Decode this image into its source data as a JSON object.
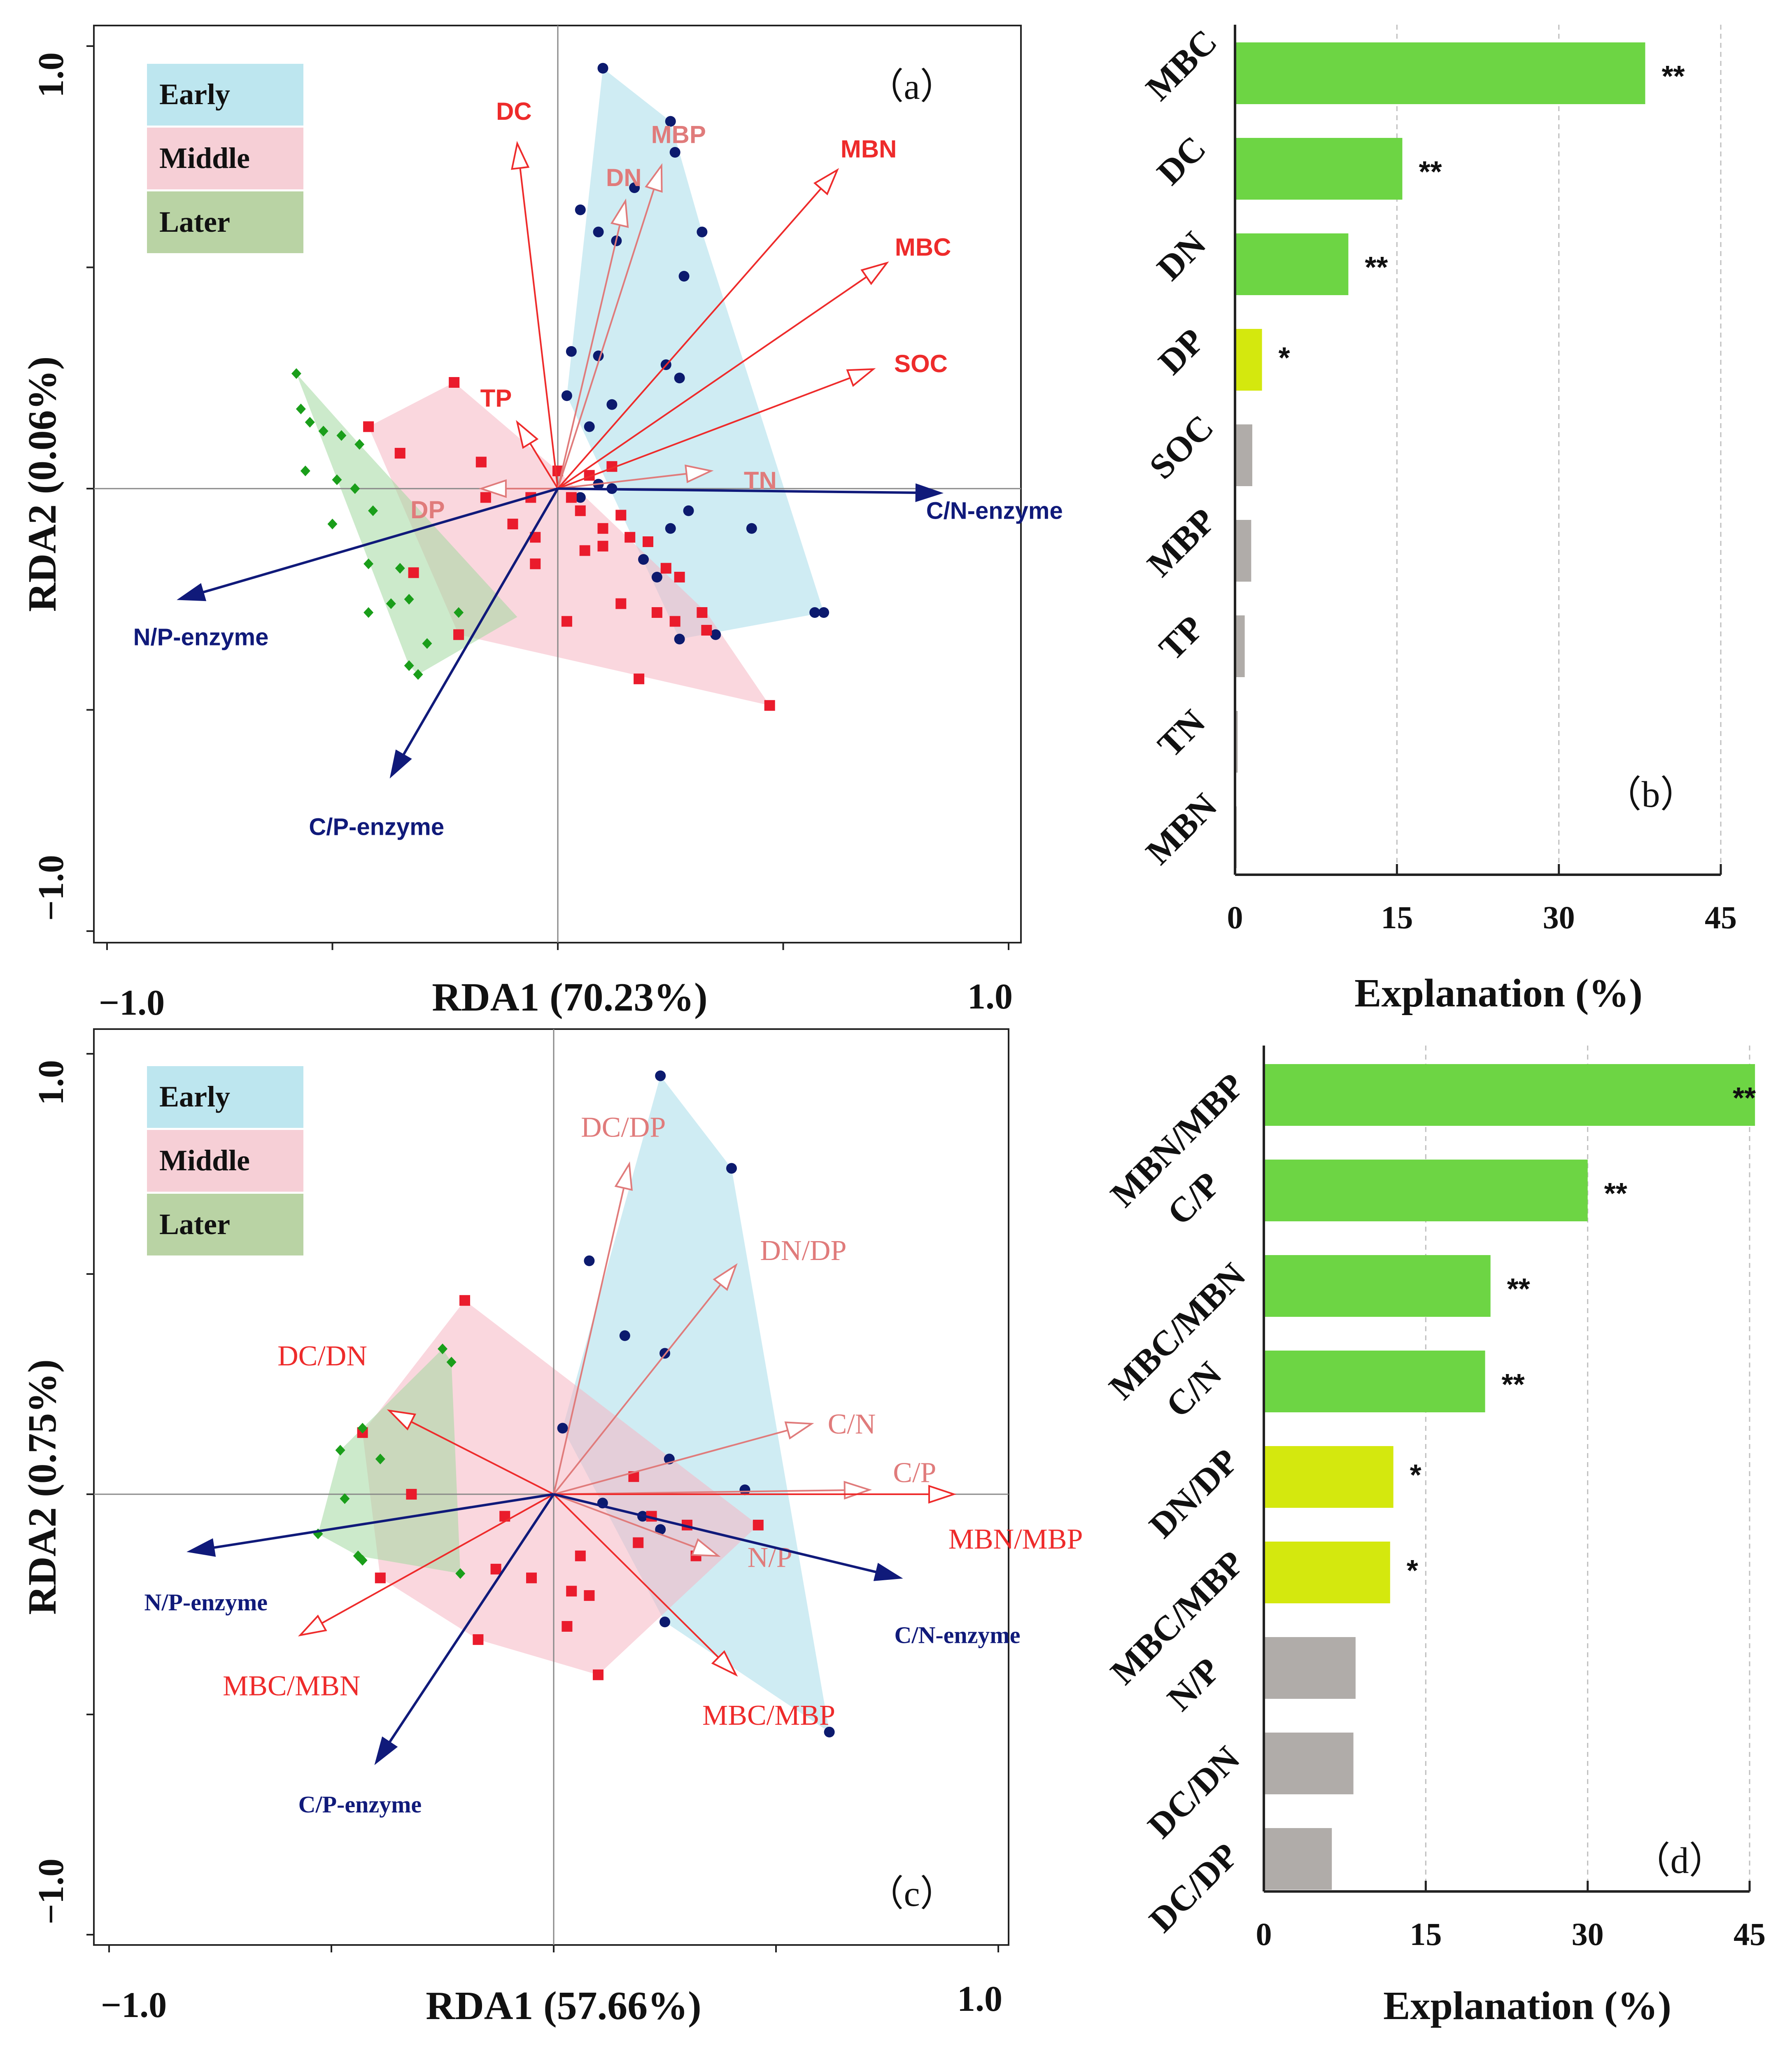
{
  "chart_data": [
    {
      "id": "a",
      "type": "scatter",
      "panel_label": "（a）",
      "xlabel": "RDA1 (70.23%)",
      "ylabel": "RDA2 (0.06%)",
      "xlim": [
        -1.0,
        1.0
      ],
      "ylim": [
        -1.0,
        1.0
      ],
      "xtick_labels": [
        "−1.0",
        "1.0"
      ],
      "ytick_labels": [
        "1.0",
        "−1.0"
      ],
      "legend": [
        {
          "label": "Early",
          "color": "#bde6ef"
        },
        {
          "label": "Middle",
          "color": "#f6cfd6"
        },
        {
          "label": "Later",
          "color": "#b9d3a4"
        }
      ],
      "groups": [
        {
          "name": "Early",
          "marker": "circle",
          "color": "#0c1a6e",
          "hull_color": "#a8dde9",
          "points": [
            [
              0.1,
              0.95
            ],
            [
              0.25,
              0.83
            ],
            [
              0.26,
              0.76
            ],
            [
              0.05,
              0.63
            ],
            [
              0.09,
              0.58
            ],
            [
              0.13,
              0.56
            ],
            [
              0.17,
              0.68
            ],
            [
              0.32,
              0.58
            ],
            [
              0.28,
              0.48
            ],
            [
              0.03,
              0.31
            ],
            [
              0.09,
              0.3
            ],
            [
              0.24,
              0.28
            ],
            [
              0.27,
              0.25
            ],
            [
              0.02,
              0.21
            ],
            [
              0.12,
              0.19
            ],
            [
              0.07,
              0.14
            ],
            [
              0.09,
              0.01
            ],
            [
              0.29,
              -0.05
            ],
            [
              0.25,
              -0.09
            ],
            [
              0.43,
              -0.09
            ],
            [
              0.19,
              -0.16
            ],
            [
              0.22,
              -0.2
            ],
            [
              0.57,
              -0.28
            ],
            [
              0.59,
              -0.28
            ],
            [
              0.27,
              -0.34
            ],
            [
              0.35,
              -0.33
            ],
            [
              0.12,
              0.0
            ],
            [
              0.05,
              -0.02
            ]
          ],
          "hull": [
            [
              0.1,
              0.95
            ],
            [
              0.25,
              0.83
            ],
            [
              0.32,
              0.58
            ],
            [
              0.59,
              -0.28
            ],
            [
              0.27,
              -0.34
            ],
            [
              0.02,
              0.21
            ]
          ]
        },
        {
          "name": "Middle",
          "marker": "square",
          "color": "#ea1b2c",
          "hull_color": "#f5b6c3",
          "points": [
            [
              -0.23,
              0.24
            ],
            [
              -0.42,
              0.14
            ],
            [
              -0.35,
              0.08
            ],
            [
              -0.17,
              0.06
            ],
            [
              0.0,
              0.04
            ],
            [
              0.07,
              0.03
            ],
            [
              0.12,
              0.05
            ],
            [
              -0.06,
              -0.02
            ],
            [
              0.03,
              -0.02
            ],
            [
              -0.1,
              -0.08
            ],
            [
              -0.05,
              -0.11
            ],
            [
              0.05,
              -0.05
            ],
            [
              0.1,
              -0.09
            ],
            [
              0.14,
              -0.06
            ],
            [
              0.06,
              -0.14
            ],
            [
              -0.05,
              -0.17
            ],
            [
              0.16,
              -0.11
            ],
            [
              0.2,
              -0.12
            ],
            [
              0.24,
              -0.18
            ],
            [
              0.27,
              -0.2
            ],
            [
              0.14,
              -0.26
            ],
            [
              0.22,
              -0.28
            ],
            [
              0.26,
              -0.3
            ],
            [
              0.32,
              -0.28
            ],
            [
              0.33,
              -0.32
            ],
            [
              0.02,
              -0.3
            ],
            [
              -0.32,
              -0.19
            ],
            [
              -0.22,
              -0.33
            ],
            [
              0.18,
              -0.43
            ],
            [
              0.47,
              -0.49
            ],
            [
              -0.16,
              -0.02
            ],
            [
              0.1,
              -0.13
            ]
          ],
          "hull": [
            [
              -0.23,
              0.24
            ],
            [
              0.0,
              0.04
            ],
            [
              0.33,
              -0.28
            ],
            [
              0.47,
              -0.49
            ],
            [
              -0.22,
              -0.33
            ],
            [
              -0.42,
              0.14
            ]
          ]
        },
        {
          "name": "Later",
          "marker": "diamond",
          "color": "#1a9e1a",
          "hull_color": "#a3d8a0",
          "points": [
            [
              -0.58,
              0.26
            ],
            [
              -0.57,
              0.18
            ],
            [
              -0.55,
              0.15
            ],
            [
              -0.52,
              0.13
            ],
            [
              -0.48,
              0.12
            ],
            [
              -0.44,
              0.1
            ],
            [
              -0.56,
              0.04
            ],
            [
              -0.49,
              0.02
            ],
            [
              -0.45,
              0.0
            ],
            [
              -0.41,
              -0.05
            ],
            [
              -0.5,
              -0.08
            ],
            [
              -0.42,
              -0.17
            ],
            [
              -0.35,
              -0.18
            ],
            [
              -0.33,
              -0.25
            ],
            [
              -0.37,
              -0.26
            ],
            [
              -0.42,
              -0.28
            ],
            [
              -0.22,
              -0.28
            ],
            [
              -0.29,
              -0.35
            ],
            [
              -0.33,
              -0.4
            ],
            [
              -0.31,
              -0.42
            ]
          ],
          "hull": [
            [
              -0.58,
              0.26
            ],
            [
              -0.44,
              0.1
            ],
            [
              -0.09,
              -0.29
            ],
            [
              -0.31,
              -0.42
            ],
            [
              -0.33,
              -0.4
            ]
          ]
        }
      ],
      "vectors": [
        {
          "label": "DC",
          "x": -0.09,
          "y": 0.78,
          "color": "#ee2b2b",
          "head": "open"
        },
        {
          "label": "MBP",
          "x": 0.23,
          "y": 0.73,
          "color": "#e07b7b",
          "head": "open"
        },
        {
          "label": "DN",
          "x": 0.15,
          "y": 0.65,
          "color": "#e07b7b",
          "head": "open"
        },
        {
          "label": "MBN",
          "x": 0.62,
          "y": 0.72,
          "color": "#ee2b2b",
          "head": "open"
        },
        {
          "label": "MBC",
          "x": 0.73,
          "y": 0.51,
          "color": "#ee2b2b",
          "head": "open"
        },
        {
          "label": "SOC",
          "x": 0.7,
          "y": 0.27,
          "color": "#ee2b2b",
          "head": "open"
        },
        {
          "label": "TP",
          "x": -0.09,
          "y": 0.15,
          "color": "#ee2b2b",
          "head": "open"
        },
        {
          "label": "TN",
          "x": 0.34,
          "y": 0.04,
          "color": "#e07b7b",
          "head": "open"
        },
        {
          "label": "DP",
          "x": -0.17,
          "y": 0.0,
          "color": "#e07b7b",
          "head": "open"
        },
        {
          "label": "C/N-enzyme",
          "x": 0.85,
          "y": -0.01,
          "color": "#101a7a",
          "head": "solid"
        },
        {
          "label": "N/P-enzyme",
          "x": -0.84,
          "y": -0.25,
          "color": "#101a7a",
          "head": "solid"
        },
        {
          "label": "C/P-enzyme",
          "x": -0.37,
          "y": -0.65,
          "color": "#101a7a",
          "head": "solid"
        }
      ]
    },
    {
      "id": "b",
      "type": "bar",
      "orientation": "horizontal",
      "panel_label": "（b）",
      "xlabel": "Explanation (%)",
      "xlim": [
        0,
        45
      ],
      "xtick_labels": [
        "0",
        "15",
        "30",
        "45"
      ],
      "categories": [
        "MBC",
        "DC",
        "DN",
        "DP",
        "SOC",
        "MBP",
        "TP",
        "TN",
        "MBN"
      ],
      "values": [
        38.0,
        15.5,
        10.5,
        2.5,
        1.6,
        1.5,
        0.9,
        0.25,
        0.05
      ],
      "significance": [
        "**",
        "**",
        "**",
        "*",
        "",
        "",
        "",
        "",
        ""
      ],
      "colors": [
        "#6dd544",
        "#6dd544",
        "#6dd544",
        "#d4e80e",
        "#b0aca9",
        "#b0aca9",
        "#b0aca9",
        "#b0aca9",
        "#b0aca9"
      ]
    },
    {
      "id": "c",
      "type": "scatter",
      "panel_label": "（c）",
      "xlabel": "RDA1 (57.66%)",
      "ylabel": "RDA2 (0.75%)",
      "xlim": [
        -1.0,
        1.0
      ],
      "ylim": [
        -1.0,
        1.0
      ],
      "xtick_labels": [
        "−1.0",
        "1.0"
      ],
      "ytick_labels": [
        "1.0",
        "−1.0"
      ],
      "legend": [
        {
          "label": "Early",
          "color": "#bde6ef"
        },
        {
          "label": "Middle",
          "color": "#f6cfd6"
        },
        {
          "label": "Later",
          "color": "#b9d3a4"
        }
      ],
      "groups": [
        {
          "name": "Early",
          "marker": "circle",
          "color": "#0c1a6e",
          "hull_color": "#a8dde9",
          "points": [
            [
              0.24,
              0.95
            ],
            [
              0.4,
              0.74
            ],
            [
              0.08,
              0.53
            ],
            [
              0.16,
              0.36
            ],
            [
              0.25,
              0.32
            ],
            [
              0.02,
              0.15
            ],
            [
              0.26,
              0.08
            ],
            [
              0.43,
              0.01
            ],
            [
              0.11,
              -0.02
            ],
            [
              0.2,
              -0.05
            ],
            [
              0.24,
              -0.08
            ],
            [
              0.25,
              -0.29
            ],
            [
              0.62,
              -0.54
            ]
          ],
          "hull": [
            [
              0.24,
              0.95
            ],
            [
              0.4,
              0.74
            ],
            [
              0.62,
              -0.54
            ],
            [
              0.25,
              -0.29
            ],
            [
              0.02,
              0.15
            ]
          ]
        },
        {
          "name": "Middle",
          "marker": "square",
          "color": "#ea1b2c",
          "hull_color": "#f5b6c3",
          "points": [
            [
              -0.2,
              0.44
            ],
            [
              -0.43,
              0.14
            ],
            [
              -0.32,
              0.0
            ],
            [
              -0.11,
              -0.05
            ],
            [
              0.18,
              0.04
            ],
            [
              0.3,
              -0.07
            ],
            [
              0.22,
              -0.05
            ],
            [
              0.19,
              -0.11
            ],
            [
              0.32,
              -0.14
            ],
            [
              0.46,
              -0.07
            ],
            [
              0.06,
              -0.14
            ],
            [
              -0.13,
              -0.17
            ],
            [
              -0.39,
              -0.19
            ],
            [
              -0.05,
              -0.19
            ],
            [
              0.04,
              -0.22
            ],
            [
              0.08,
              -0.23
            ],
            [
              0.03,
              -0.3
            ],
            [
              -0.17,
              -0.33
            ],
            [
              0.1,
              -0.41
            ]
          ],
          "hull": [
            [
              -0.2,
              0.44
            ],
            [
              0.46,
              -0.07
            ],
            [
              0.1,
              -0.41
            ],
            [
              -0.17,
              -0.33
            ],
            [
              -0.39,
              -0.19
            ],
            [
              -0.43,
              0.14
            ]
          ]
        },
        {
          "name": "Later",
          "marker": "diamond",
          "color": "#1a9e1a",
          "hull_color": "#a3d8a0",
          "points": [
            [
              -0.25,
              0.33
            ],
            [
              -0.23,
              0.3
            ],
            [
              -0.43,
              0.15
            ],
            [
              -0.39,
              0.08
            ],
            [
              -0.48,
              0.1
            ],
            [
              -0.47,
              -0.01
            ],
            [
              -0.53,
              -0.09
            ],
            [
              -0.44,
              -0.14
            ],
            [
              -0.43,
              -0.15
            ],
            [
              -0.21,
              -0.18
            ]
          ],
          "hull": [
            [
              -0.25,
              0.33
            ],
            [
              -0.23,
              0.3
            ],
            [
              -0.21,
              -0.18
            ],
            [
              -0.44,
              -0.14
            ],
            [
              -0.53,
              -0.09
            ],
            [
              -0.48,
              0.1
            ]
          ]
        }
      ],
      "vectors": [
        {
          "label": "DC/DP",
          "x": 0.17,
          "y": 0.75,
          "color": "#e07b7b",
          "head": "open"
        },
        {
          "label": "DN/DP",
          "x": 0.41,
          "y": 0.52,
          "color": "#e07b7b",
          "head": "open"
        },
        {
          "label": "DC/DN",
          "x": -0.37,
          "y": 0.19,
          "color": "#ee2b2b",
          "head": "open"
        },
        {
          "label": "C/N",
          "x": 0.58,
          "y": 0.16,
          "color": "#e07b7b",
          "head": "open"
        },
        {
          "label": "C/P",
          "x": 0.71,
          "y": 0.01,
          "color": "#e07b7b",
          "head": "open"
        },
        {
          "label": "MBN/MBP",
          "x": 0.9,
          "y": 0.0,
          "color": "#ee2b2b",
          "head": "open"
        },
        {
          "label": "N/P",
          "x": 0.37,
          "y": -0.14,
          "color": "#e07b7b",
          "head": "open"
        },
        {
          "label": "MBC/MBP",
          "x": 0.41,
          "y": -0.41,
          "color": "#ee2b2b",
          "head": "open"
        },
        {
          "label": "MBC/MBN",
          "x": -0.57,
          "y": -0.32,
          "color": "#ee2b2b",
          "head": "open"
        },
        {
          "label": "C/N-enzyme",
          "x": 0.78,
          "y": -0.19,
          "color": "#101a7a",
          "head": "solid"
        },
        {
          "label": "N/P-enzyme",
          "x": -0.82,
          "y": -0.13,
          "color": "#101a7a",
          "head": "solid"
        },
        {
          "label": "C/P-enzyme",
          "x": -0.4,
          "y": -0.61,
          "color": "#101a7a",
          "head": "solid"
        }
      ]
    },
    {
      "id": "d",
      "type": "bar",
      "orientation": "horizontal",
      "panel_label": "（d）",
      "xlabel": "Explanation (%)",
      "xlim": [
        0,
        45
      ],
      "xtick_labels": [
        "0",
        "15",
        "30",
        "45"
      ],
      "categories": [
        "MBN/MBP",
        "C/P",
        "MBC/MBN",
        "C/N",
        "DN/DP",
        "MBC/MBP",
        "N/P",
        "DC/DN",
        "DC/DP"
      ],
      "values": [
        45.5,
        30.0,
        21.0,
        20.5,
        12.0,
        11.7,
        8.5,
        8.3,
        6.3
      ],
      "significance": [
        "**",
        "**",
        "**",
        "**",
        "*",
        "*",
        "",
        "",
        ""
      ],
      "colors": [
        "#6dd544",
        "#6dd544",
        "#6dd544",
        "#6dd544",
        "#d4e80e",
        "#d4e80e",
        "#b0aca9",
        "#b0aca9",
        "#b0aca9"
      ]
    }
  ]
}
